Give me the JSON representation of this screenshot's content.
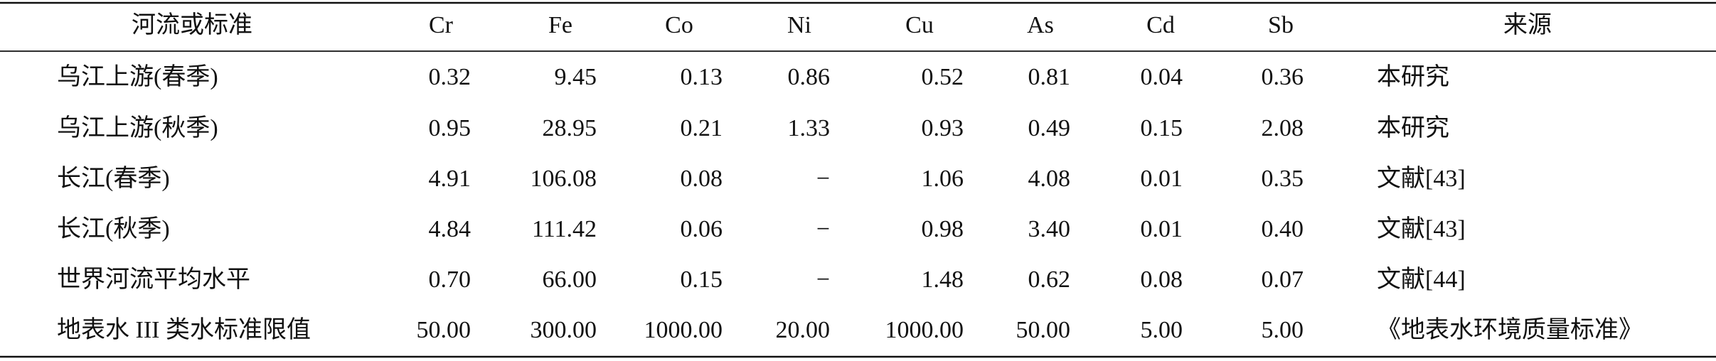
{
  "table": {
    "header": [
      "河流或标准",
      "Cr",
      "Fe",
      "Co",
      "Ni",
      "Cu",
      "As",
      "Cd",
      "Sb",
      "来源"
    ],
    "rows": [
      [
        "乌江上游(春季)",
        "0.32",
        "9.45",
        "0.13",
        "0.86",
        "0.52",
        "0.81",
        "0.04",
        "0.36",
        "本研究"
      ],
      [
        "乌江上游(秋季)",
        "0.95",
        "28.95",
        "0.21",
        "1.33",
        "0.93",
        "0.49",
        "0.15",
        "2.08",
        "本研究"
      ],
      [
        "长江(春季)",
        "4.91",
        "106.08",
        "0.08",
        "−",
        "1.06",
        "4.08",
        "0.01",
        "0.35",
        "文献[43]"
      ],
      [
        "长江(秋季)",
        "4.84",
        "111.42",
        "0.06",
        "−",
        "0.98",
        "3.40",
        "0.01",
        "0.40",
        "文献[43]"
      ],
      [
        "世界河流平均水平",
        "0.70",
        "66.00",
        "0.15",
        "−",
        "1.48",
        "0.62",
        "0.08",
        "0.07",
        "文献[44]"
      ],
      [
        "地表水 III 类水标准限值",
        "50.00",
        "300.00",
        "1000.00",
        "20.00",
        "1000.00",
        "50.00",
        "5.00",
        "5.00",
        "《地表水环境质量标准》"
      ]
    ]
  }
}
